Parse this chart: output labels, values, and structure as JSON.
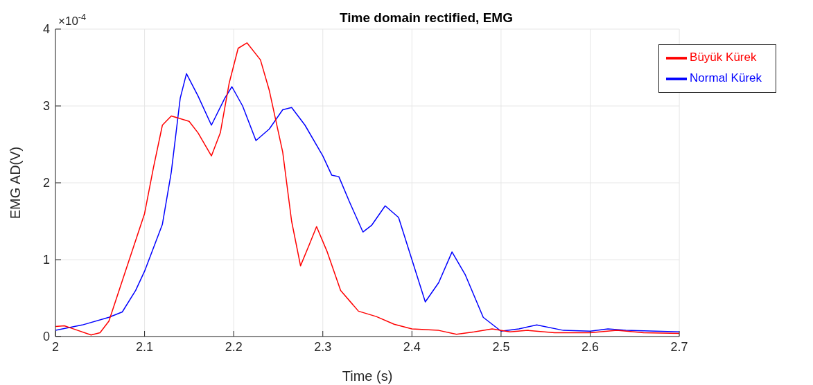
{
  "chart_data": {
    "type": "line",
    "title": "Time domain rectified, EMG",
    "xlabel": "Time (s)",
    "ylabel": "EMG AD(V)",
    "annotations": [
      "×10$^{-4}$"
    ],
    "xlim": [
      2,
      2.7
    ],
    "xticks": [
      2,
      2.1,
      2.2,
      2.3,
      2.4,
      2.5,
      2.6,
      2.7
    ],
    "ylim": [
      0,
      4
    ],
    "yticks": [
      0,
      1,
      2,
      3,
      4
    ],
    "grid": true,
    "legend": "top right",
    "line_style": "solid",
    "marker": "none",
    "series": [
      {
        "name": "Normal Kürek",
        "color": "#0000ff",
        "x": [
          2,
          2.03,
          2.06,
          2.075,
          2.09,
          2.1,
          2.12,
          2.13,
          2.14,
          2.147,
          2.16,
          2.175,
          2.19,
          2.198,
          2.21,
          2.225,
          2.24,
          2.255,
          2.265,
          2.28,
          2.3,
          2.31,
          2.318,
          2.33,
          2.345,
          2.355,
          2.37,
          2.385,
          2.4,
          2.415,
          2.43,
          2.445,
          2.46,
          2.48,
          2.5,
          2.52,
          2.54,
          2.57,
          2.6,
          2.62,
          2.64,
          2.7
        ],
        "values": [
          0.08,
          0.15,
          0.25,
          0.32,
          0.6,
          0.85,
          1.46,
          2.14,
          3.1,
          3.42,
          3.13,
          2.75,
          3.1,
          3.25,
          3.0,
          2.55,
          2.7,
          2.95,
          2.98,
          2.75,
          2.35,
          2.1,
          2.08,
          1.75,
          1.36,
          1.45,
          1.7,
          1.55,
          1.0,
          0.45,
          0.7,
          1.1,
          0.8,
          0.25,
          0.07,
          0.1,
          0.15,
          0.08,
          0.07,
          0.1,
          0.08,
          0.06
        ]
      },
      {
        "name": "Büyük Kürek",
        "color": "#ff0000",
        "x": [
          2,
          2.01,
          2.02,
          2.04,
          2.05,
          2.06,
          2.08,
          2.1,
          2.11,
          2.12,
          2.13,
          2.15,
          2.16,
          2.175,
          2.185,
          2.195,
          2.205,
          2.215,
          2.23,
          2.24,
          2.255,
          2.265,
          2.275,
          2.285,
          2.293,
          2.305,
          2.32,
          2.34,
          2.36,
          2.38,
          2.4,
          2.43,
          2.45,
          2.47,
          2.49,
          2.51,
          2.53,
          2.56,
          2.6,
          2.63,
          2.66,
          2.7
        ],
        "values": [
          0.13,
          0.14,
          0.1,
          0.02,
          0.05,
          0.2,
          0.9,
          1.6,
          2.2,
          2.75,
          2.87,
          2.8,
          2.65,
          2.35,
          2.65,
          3.3,
          3.75,
          3.82,
          3.6,
          3.2,
          2.4,
          1.5,
          0.92,
          1.2,
          1.43,
          1.1,
          0.6,
          0.33,
          0.26,
          0.16,
          0.1,
          0.08,
          0.03,
          0.06,
          0.1,
          0.06,
          0.08,
          0.05,
          0.05,
          0.08,
          0.05,
          0.04
        ]
      }
    ]
  }
}
